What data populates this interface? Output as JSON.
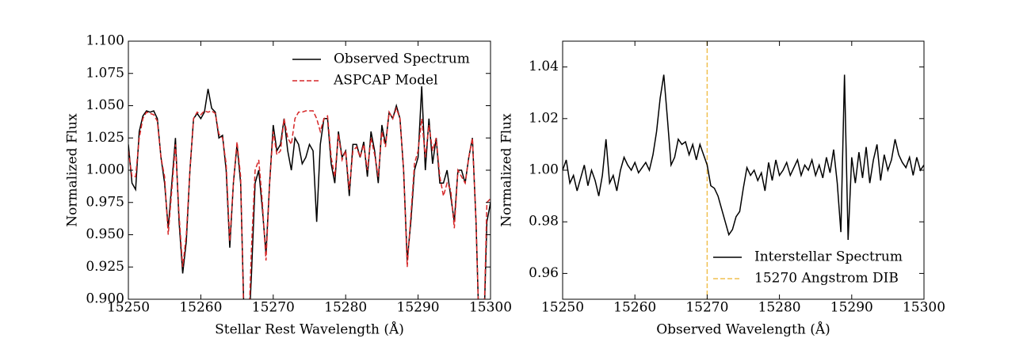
{
  "chart_data": [
    {
      "type": "line",
      "xlabel": "Stellar Rest Wavelength (Å)",
      "ylabel": "Normalized Flux",
      "xlim": [
        15250,
        15300
      ],
      "ylim": [
        0.9,
        1.1
      ],
      "xticks": [
        15250,
        15260,
        15270,
        15280,
        15290,
        15300
      ],
      "yticks": [
        {
          "value": 0.9,
          "label": "0.900"
        },
        {
          "value": 0.925,
          "label": "0.925"
        },
        {
          "value": 0.95,
          "label": "0.950"
        },
        {
          "value": 0.975,
          "label": "0.975"
        },
        {
          "value": 1.0,
          "label": "1.000"
        },
        {
          "value": 1.025,
          "label": "1.025"
        },
        {
          "value": 1.05,
          "label": "1.050"
        },
        {
          "value": 1.075,
          "label": "1.075"
        },
        {
          "value": 1.1,
          "label": "1.100"
        }
      ],
      "legend": "upper right",
      "x": [
        15250,
        15250.5,
        15251,
        15251.5,
        15252,
        15252.5,
        15253,
        15253.5,
        15254,
        15254.5,
        15255,
        15255.5,
        15256,
        15256.5,
        15257,
        15257.5,
        15258,
        15258.5,
        15259,
        15259.5,
        15260,
        15260.5,
        15261,
        15261.5,
        15262,
        15262.5,
        15263,
        15263.5,
        15264,
        15264.5,
        15265,
        15265.5,
        15266,
        15266.5,
        15267,
        15267.5,
        15268,
        15268.5,
        15269,
        15269.5,
        15270,
        15270.5,
        15271,
        15271.5,
        15272,
        15272.5,
        15273,
        15273.5,
        15274,
        15274.5,
        15275,
        15275.5,
        15276,
        15276.5,
        15277,
        15277.5,
        15278,
        15278.5,
        15279,
        15279.5,
        15280,
        15280.5,
        15281,
        15281.5,
        15282,
        15282.5,
        15283,
        15283.5,
        15284,
        15284.5,
        15285,
        15285.5,
        15286,
        15286.5,
        15287,
        15287.5,
        15288,
        15288.5,
        15289,
        15289.5,
        15290,
        15290.5,
        15291,
        15291.5,
        15292,
        15292.5,
        15293,
        15293.5,
        15294,
        15294.5,
        15295,
        15295.5,
        15296,
        15296.5,
        15297,
        15297.5,
        15298,
        15298.5,
        15299,
        15299.5,
        15300
      ],
      "series": [
        {
          "name": "Observed Spectrum",
          "color": "#000000",
          "dash": false,
          "values": [
            1.02,
            0.99,
            0.985,
            1.03,
            1.042,
            1.046,
            1.045,
            1.046,
            1.04,
            1.01,
            0.99,
            0.955,
            0.99,
            1.025,
            0.96,
            0.92,
            0.945,
            1.0,
            1.04,
            1.044,
            1.04,
            1.045,
            1.063,
            1.048,
            1.045,
            1.025,
            1.027,
            1.0,
            0.94,
            0.99,
            1.02,
            0.99,
            0.88,
            0.86,
            0.92,
            0.99,
            1.0,
            0.97,
            0.935,
            0.99,
            1.035,
            1.015,
            1.02,
            1.04,
            1.015,
            1.0,
            1.025,
            1.02,
            1.005,
            1.01,
            1.02,
            1.015,
            0.96,
            1.02,
            1.04,
            1.04,
            1.005,
            0.99,
            1.03,
            1.01,
            1.015,
            0.98,
            1.02,
            1.02,
            1.01,
            1.022,
            0.995,
            1.03,
            1.015,
            0.99,
            1.035,
            1.02,
            1.045,
            1.04,
            1.05,
            1.04,
            1.0,
            0.93,
            0.96,
            1.0,
            1.01,
            1.065,
            1.0,
            1.04,
            1.005,
            1.025,
            0.99,
            0.99,
            1.0,
            0.98,
            0.96,
            1.0,
            1.0,
            0.99,
            1.01,
            1.025,
            0.96,
            0.86,
            0.86,
            0.96,
            0.975
          ]
        },
        {
          "name": "ASPCAP Model",
          "color": "#d62728",
          "dash": true,
          "values": [
            1.015,
            0.995,
            0.995,
            1.025,
            1.04,
            1.045,
            1.044,
            1.043,
            1.038,
            1.01,
            0.995,
            0.95,
            0.985,
            1.02,
            0.965,
            0.925,
            0.95,
            1.0,
            1.04,
            1.045,
            1.043,
            1.046,
            1.045,
            1.046,
            1.044,
            1.028,
            1.025,
            1.005,
            0.945,
            0.99,
            1.022,
            0.995,
            0.87,
            0.86,
            0.94,
            1.0,
            1.008,
            0.975,
            0.93,
            0.99,
            1.03,
            1.012,
            1.015,
            1.04,
            1.025,
            1.02,
            1.04,
            1.045,
            1.045,
            1.046,
            1.046,
            1.046,
            1.04,
            1.03,
            1.04,
            1.042,
            1.01,
            0.995,
            1.028,
            1.008,
            1.015,
            0.985,
            1.015,
            1.018,
            1.01,
            1.02,
            1.0,
            1.025,
            1.012,
            0.995,
            1.03,
            1.018,
            1.045,
            1.04,
            1.048,
            1.04,
            1.0,
            0.925,
            0.965,
            1.005,
            1.015,
            1.04,
            1.01,
            1.035,
            1.015,
            1.025,
            0.995,
            0.98,
            0.99,
            0.985,
            0.955,
            1.0,
            0.995,
            0.99,
            1.01,
            1.025,
            0.96,
            0.86,
            0.86,
            0.975,
            0.978
          ]
        }
      ]
    },
    {
      "type": "line",
      "xlabel": "Observed Wavelength (Å)",
      "ylabel": "Normalized Flux",
      "xlim": [
        15250,
        15300
      ],
      "ylim": [
        0.95,
        1.05
      ],
      "xticks": [
        15250,
        15260,
        15270,
        15280,
        15290,
        15300
      ],
      "yticks": [
        0.96,
        0.98,
        {
          "value": 1.0,
          "label": "1.00"
        },
        1.02,
        1.04
      ],
      "legend": "lower right",
      "x": [
        15250,
        15250.5,
        15251,
        15251.5,
        15252,
        15252.5,
        15253,
        15253.5,
        15254,
        15254.5,
        15255,
        15255.5,
        15256,
        15256.5,
        15257,
        15257.5,
        15258,
        15258.5,
        15259,
        15259.5,
        15260,
        15260.5,
        15261,
        15261.5,
        15262,
        15262.5,
        15263,
        15263.5,
        15264,
        15264.5,
        15265,
        15265.5,
        15266,
        15266.5,
        15267,
        15267.5,
        15268,
        15268.5,
        15269,
        15269.5,
        15270,
        15270.5,
        15271,
        15271.5,
        15272,
        15272.5,
        15273,
        15273.5,
        15274,
        15274.5,
        15275,
        15275.5,
        15276,
        15276.5,
        15277,
        15277.5,
        15278,
        15278.5,
        15279,
        15279.5,
        15280,
        15280.5,
        15281,
        15281.5,
        15282,
        15282.5,
        15283,
        15283.5,
        15284,
        15284.5,
        15285,
        15285.5,
        15286,
        15286.5,
        15287,
        15287.5,
        15288,
        15288.5,
        15289,
        15289.5,
        15290,
        15290.5,
        15291,
        15291.5,
        15292,
        15292.5,
        15293,
        15293.5,
        15294,
        15294.5,
        15295,
        15295.5,
        15296,
        15296.5,
        15297,
        15297.5,
        15298,
        15298.5,
        15299,
        15299.5,
        15300
      ],
      "series": [
        {
          "name": "Interstellar Spectrum",
          "color": "#000000",
          "dash": false,
          "values": [
            1.0,
            1.004,
            0.995,
            0.998,
            0.992,
            0.997,
            1.002,
            0.994,
            1.0,
            0.996,
            0.99,
            0.998,
            1.012,
            0.995,
            0.998,
            0.992,
            1.0,
            1.005,
            1.002,
            1.0,
            1.003,
            0.999,
            1.001,
            1.003,
            1.0,
            1.006,
            1.015,
            1.028,
            1.037,
            1.02,
            1.002,
            1.005,
            1.012,
            1.01,
            1.011,
            1.006,
            1.01,
            1.004,
            1.01,
            1.006,
            1.002,
            0.994,
            0.993,
            0.99,
            0.985,
            0.98,
            0.975,
            0.977,
            0.982,
            0.984,
            0.993,
            1.001,
            0.998,
            1.0,
            0.996,
            0.999,
            0.992,
            1.003,
            0.996,
            1.004,
            0.998,
            1.0,
            1.003,
            0.998,
            1.001,
            1.004,
            0.998,
            1.002,
            1.0,
            1.004,
            0.998,
            1.002,
            0.997,
            1.005,
            0.999,
            1.008,
            0.995,
            0.976,
            1.037,
            0.973,
            1.005,
            0.995,
            1.007,
            0.997,
            1.009,
            0.995,
            1.004,
            1.01,
            0.996,
            1.006,
            1.0,
            1.004,
            1.012,
            1.006,
            1.003,
            1.001,
            1.005,
            0.998,
            1.005,
            1.0,
            1.002
          ]
        }
      ],
      "vlines": [
        {
          "x": 15270,
          "name": "15270 Angstrom DIB",
          "color": "#f0c050"
        }
      ]
    }
  ]
}
